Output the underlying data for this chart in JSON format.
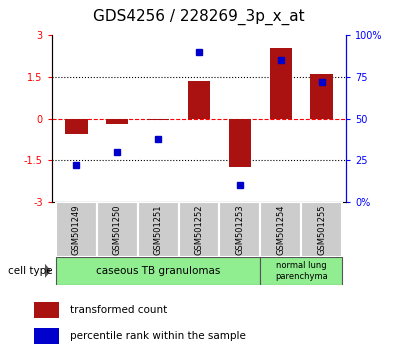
{
  "title": "GDS4256 / 228269_3p_x_at",
  "samples": [
    "GSM501249",
    "GSM501250",
    "GSM501251",
    "GSM501252",
    "GSM501253",
    "GSM501254",
    "GSM501255"
  ],
  "bar_values": [
    -0.55,
    -0.2,
    -0.05,
    1.35,
    -1.75,
    2.55,
    1.6
  ],
  "dot_values": [
    22,
    30,
    38,
    90,
    10,
    85,
    72
  ],
  "ylim_left": [
    -3,
    3
  ],
  "ylim_right": [
    0,
    100
  ],
  "yticks_left": [
    -3,
    -1.5,
    0,
    1.5,
    3
  ],
  "yticks_right": [
    0,
    25,
    50,
    75,
    100
  ],
  "yticklabels_left": [
    "-3",
    "-1.5",
    "0",
    "1.5",
    "3"
  ],
  "yticklabels_right": [
    "0%",
    "25",
    "50",
    "75",
    "100%"
  ],
  "bar_color": "#AA1111",
  "dot_color": "#0000CC",
  "group1_label": "caseous TB granulomas",
  "group2_label": "normal lung\nparenchyma",
  "group1_color": "#90EE90",
  "group2_color": "#90EE90",
  "cell_type_label": "cell type",
  "legend_bar_label": "transformed count",
  "legend_dot_label": "percentile rank within the sample",
  "title_fontsize": 11,
  "tick_fontsize": 7,
  "label_fontsize": 7
}
